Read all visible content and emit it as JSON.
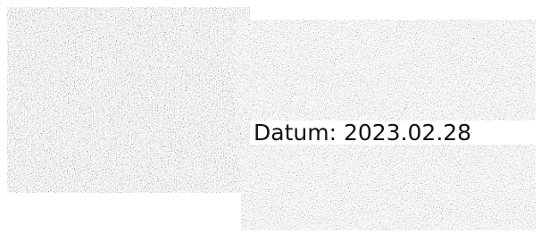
{
  "caption": {
    "text": "Datum: 2023.02.28"
  }
}
